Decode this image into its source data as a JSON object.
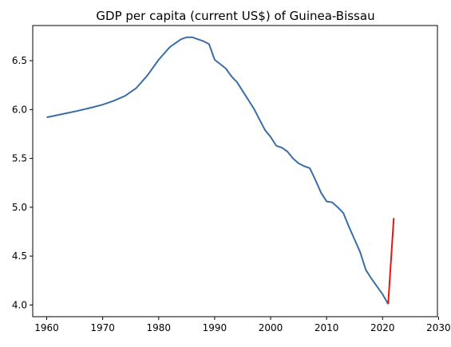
{
  "chart_data": {
    "type": "line",
    "title": "GDP per capita (current US$) of Guinea-Bissau",
    "xlabel": "",
    "ylabel": "",
    "xlim": [
      1957.5,
      2029.8
    ],
    "ylim": [
      3.88,
      6.86
    ],
    "grid": false,
    "xticks": [
      1960,
      1970,
      1980,
      1990,
      2000,
      2010,
      2020,
      2030
    ],
    "yticks": [
      4.0,
      4.5,
      5.0,
      5.5,
      6.0,
      6.5
    ],
    "xtick_labels": [
      "1960",
      "1970",
      "1980",
      "1990",
      "2000",
      "2010",
      "2020",
      "2030"
    ],
    "ytick_labels": [
      "4.0",
      "4.5",
      "5.0",
      "5.5",
      "6.0",
      "6.5"
    ],
    "series": [
      {
        "color": "#3a6ea5",
        "x": [
          1960,
          1965,
          1968,
          1970,
          1972,
          1974,
          1976,
          1978,
          1980,
          1982,
          1984,
          1985,
          1986,
          1987,
          1988,
          1989,
          1990,
          1992,
          1993,
          1994,
          1995,
          1996,
          1997,
          1998,
          1999,
          2000,
          2001,
          2002,
          2003,
          2004,
          2005,
          2006,
          2007,
          2008,
          2009,
          2010,
          2011,
          2012,
          2013,
          2014,
          2015,
          2016,
          2017,
          2018,
          2019,
          2020,
          2021
        ],
        "y": [
          5.92,
          5.98,
          6.02,
          6.05,
          6.09,
          6.14,
          6.22,
          6.35,
          6.51,
          6.64,
          6.72,
          6.74,
          6.74,
          6.72,
          6.7,
          6.67,
          6.51,
          6.42,
          6.34,
          6.28,
          6.19,
          6.1,
          6.01,
          5.9,
          5.79,
          5.72,
          5.63,
          5.61,
          5.57,
          5.5,
          5.45,
          5.42,
          5.4,
          5.28,
          5.15,
          5.06,
          5.05,
          5.0,
          4.94,
          4.8,
          4.67,
          4.54,
          4.36,
          4.27,
          4.19,
          4.11,
          4.01
        ]
      },
      {
        "color": "#ee1111",
        "x": [
          2021,
          2022
        ],
        "y": [
          4.01,
          4.89
        ]
      }
    ]
  }
}
